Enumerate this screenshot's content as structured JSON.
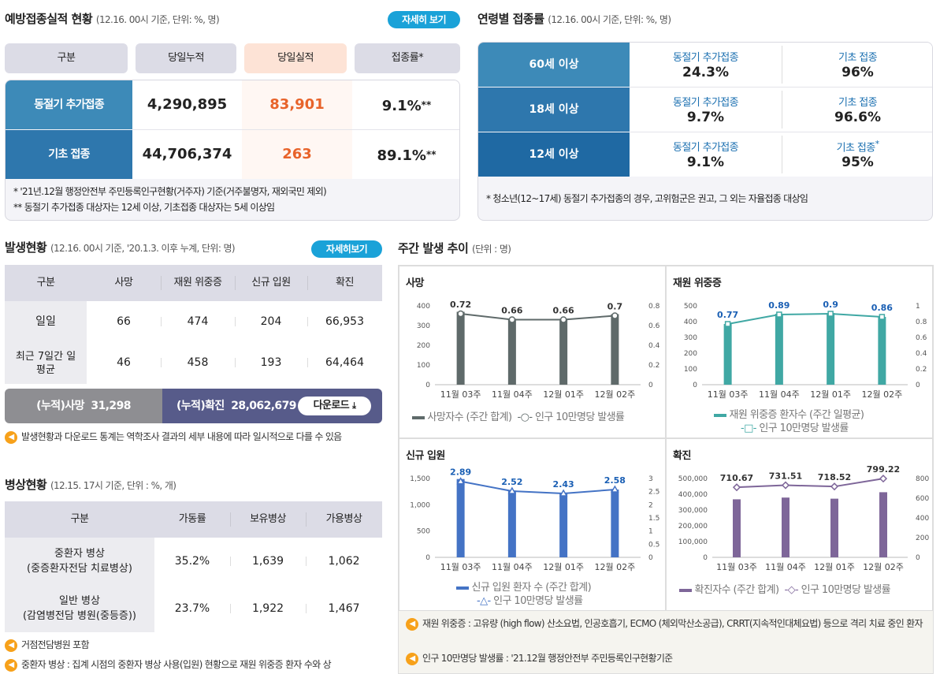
{
  "vaccine": {
    "title": "예방접종실적 현황",
    "subtitle": "(12.16. 00시 기준, 단위: %, 명)",
    "more_label": "자세히 보기",
    "headers": [
      "구분",
      "당일누적",
      "당일실적",
      "접종률*"
    ],
    "rows": [
      {
        "label": "동절기 추가접종",
        "cumulative": "4,290,895",
        "daily": "83,901",
        "rate": "9.1%",
        "rate_mark": "**"
      },
      {
        "label": "기초 접종",
        "cumulative": "44,706,374",
        "daily": "263",
        "rate": "89.1%",
        "rate_mark": "**"
      }
    ],
    "notes": [
      "* '21년.12월 행정안전부 주민등록인구현황(거주자) 기준(거주불명자, 재외국민 제외)",
      "** 동절기 추가접종 대상자는 12세 이상, 기초접종 대상자는 5세 이상임"
    ]
  },
  "age": {
    "title": "연령별 접종률",
    "subtitle": "(12.16. 00시 기준, 단위: %, 명)",
    "rows": [
      {
        "label": "60세 이상",
        "booster_label": "동절기 추가접종",
        "booster": "24.3%",
        "basic_label": "기초 접종",
        "basic": "96%",
        "basic_mark": ""
      },
      {
        "label": "18세 이상",
        "booster_label": "동절기 추가접종",
        "booster": "9.7%",
        "basic_label": "기초 접종",
        "basic": "96.6%",
        "basic_mark": ""
      },
      {
        "label": "12세 이상",
        "booster_label": "동절기 추가접종",
        "booster": "9.1%",
        "basic_label": "기초 접종",
        "basic": "95%",
        "basic_mark": "*"
      }
    ],
    "note": "* 청소년(12~17세) 동절기 추가접종의 경우, 고위험군은 권고, 그 외는 자율접종 대상임"
  },
  "outbreak": {
    "title": "발생현황",
    "subtitle": "(12.16. 00시 기준, '20.1.3. 이후 누계, 단위: 명)",
    "more_label": "자세히보기",
    "headers": [
      "구분",
      "사망",
      "재원 위중증",
      "신규 입원",
      "확진"
    ],
    "rows": [
      {
        "label": "일일",
        "cells": [
          "66",
          "474",
          "204",
          "66,953"
        ]
      },
      {
        "label": "최근 7일간 일평균",
        "cells": [
          "46",
          "458",
          "193",
          "64,464"
        ]
      }
    ],
    "cum_death_label": "(누적)사망",
    "cum_death": "31,298",
    "cum_confirmed_label": "(누적)확진",
    "cum_confirmed": "28,062,679",
    "download_label": "다운로드",
    "notice": "발생현황과 다운로드 통계는 역학조사 결과의 세부 내용에 따라 일시적으로 다를 수 있음"
  },
  "beds": {
    "title": "병상현황",
    "subtitle": "(12.15. 17시 기준, 단위 : %, 개)",
    "headers": [
      "구분",
      "가동률",
      "보유병상",
      "가용병상"
    ],
    "rows": [
      {
        "label1": "중환자 병상",
        "label2": "(중증환자전담 치료병상)",
        "cells": [
          "35.2%",
          "1,639",
          "1,062"
        ]
      },
      {
        "label1": "일반 병상",
        "label2": "(감염병전담 병원(중등증))",
        "cells": [
          "23.7%",
          "1,922",
          "1,467"
        ]
      }
    ],
    "notes": [
      "거점전담병원 포함",
      "중환자 병상 : 집계 시점의 중환자 병상 사용(입원) 현황으로 재원 위중증 환자 수와 상"
    ]
  },
  "weekly": {
    "title": "주간 발생 추이",
    "subtitle": "(단위 : 명)",
    "notes": [
      "재원 위중증 : 고유량 (high flow) 산소요법, 인공호흡기, ECMO (체외막산소공급), CRRT(지속적인대체요법) 등으로 격리 치료 중인 환자",
      "인구 10만명당 발생률 : '21.12월 행정안전부 주민등록인구현황기준"
    ]
  },
  "chart_data": [
    {
      "type": "bar",
      "title": "사망",
      "categories": [
        "11월 03주",
        "11월 04주",
        "12월 01주",
        "12월 02주"
      ],
      "ylim": [
        0,
        400
      ],
      "y2lim": [
        0,
        0.8
      ],
      "yticks": [
        "0",
        "100",
        "200",
        "300",
        "400"
      ],
      "y2ticks": [
        "0",
        "0.2",
        "0.4",
        "0.6",
        "0.8"
      ],
      "bar_values": [
        370,
        335,
        335,
        358
      ],
      "line_values": [
        0.72,
        0.66,
        0.66,
        0.7
      ],
      "line_labels": [
        "0.72",
        "0.66",
        "0.66",
        "0.7"
      ],
      "legend_bar": "사망자수 (주간 합계)",
      "legend_line": "인구 10만명당 발생률",
      "bar_color": "#5f6a6a",
      "line_color": "#5f6a6a"
    },
    {
      "type": "bar",
      "title": "재원 위중증",
      "categories": [
        "11월 03주",
        "11월 04주",
        "12월 01주",
        "12월 02주"
      ],
      "ylim": [
        0,
        500
      ],
      "y2lim": [
        0,
        1
      ],
      "yticks": [
        "0",
        "100",
        "200",
        "300",
        "400",
        "500"
      ],
      "y2ticks": [
        "0",
        "0.2",
        "0.4",
        "0.6",
        "0.8",
        "1"
      ],
      "bar_values": [
        385,
        450,
        455,
        430
      ],
      "line_values": [
        0.77,
        0.89,
        0.9,
        0.86
      ],
      "line_labels": [
        "0.77",
        "0.89",
        "0.9",
        "0.86"
      ],
      "legend_bar": "재원 위중증 환자수 (주간 일평균)",
      "legend_line": "인구 10만명당 발생률",
      "bar_color": "#40a8a4",
      "line_color": "#40a8a4"
    },
    {
      "type": "bar",
      "title": "신규 입원",
      "categories": [
        "11월 03주",
        "11월 04주",
        "12월 01주",
        "12월 02주"
      ],
      "ylim": [
        0,
        1500
      ],
      "y2lim": [
        0,
        3
      ],
      "yticks": [
        "0",
        "500",
        "1,000",
        "1,500"
      ],
      "y2ticks": [
        "0",
        "0.5",
        "1",
        "1.5",
        "2",
        "2.5",
        "3"
      ],
      "bar_values": [
        1490,
        1270,
        1230,
        1290
      ],
      "line_values": [
        2.89,
        2.52,
        2.43,
        2.58
      ],
      "line_labels": [
        "2.89",
        "2.52",
        "2.43",
        "2.58"
      ],
      "legend_bar": "신규 입원 환자 수 (주간 합계)",
      "legend_line": "인구 10만명당 발생률",
      "bar_color": "#4473c5",
      "line_color": "#4473c5"
    },
    {
      "type": "bar",
      "title": "확진",
      "categories": [
        "11월 03주",
        "11월 04주",
        "12월 01주",
        "12월 02주"
      ],
      "ylim": [
        0,
        500000
      ],
      "y2lim": [
        0,
        800
      ],
      "yticks": [
        "0",
        "100,000",
        "200,000",
        "300,000",
        "400,000",
        "500,000"
      ],
      "y2ticks": [
        "0",
        "200",
        "400",
        "600",
        "800"
      ],
      "bar_values": [
        368000,
        379000,
        372000,
        413000
      ],
      "line_values": [
        710.67,
        731.51,
        718.52,
        799.22
      ],
      "line_labels": [
        "710.67",
        "731.51",
        "718.52",
        "799.22"
      ],
      "legend_bar": "확진자수 (주간 합계)",
      "legend_line": "인구 10만명당 발생률",
      "bar_color": "#7e6699",
      "line_color": "#7e6699"
    }
  ]
}
